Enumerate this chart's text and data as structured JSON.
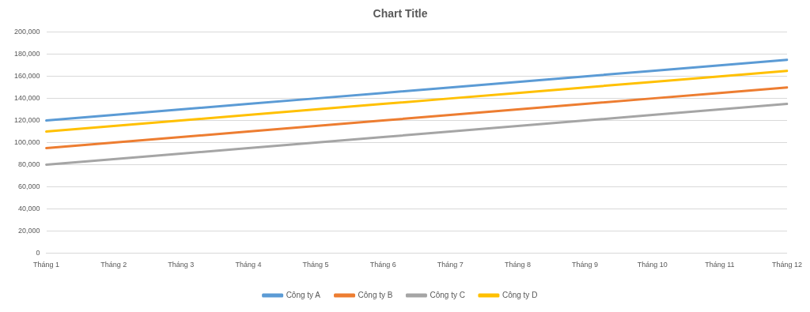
{
  "chart_data": {
    "type": "line",
    "title": "Chart Title",
    "categories": [
      "Tháng 1",
      "Tháng 2",
      "Tháng 3",
      "Tháng 4",
      "Tháng 5",
      "Tháng 6",
      "Tháng 7",
      "Tháng 8",
      "Tháng 9",
      "Tháng 10",
      "Tháng 11",
      "Tháng 12"
    ],
    "series": [
      {
        "name": "Công ty A",
        "color": "#5b9bd5",
        "values": [
          120000,
          125000,
          130000,
          135000,
          140000,
          145000,
          150000,
          155000,
          160000,
          165000,
          170000,
          175000
        ]
      },
      {
        "name": "Công ty B",
        "color": "#ed7d31",
        "values": [
          95000,
          100000,
          105000,
          110000,
          115000,
          120000,
          125000,
          130000,
          135000,
          140000,
          145000,
          150000
        ]
      },
      {
        "name": "Công ty C",
        "color": "#a5a5a5",
        "values": [
          80000,
          85000,
          90000,
          95000,
          100000,
          105000,
          110000,
          115000,
          120000,
          125000,
          130000,
          135000
        ]
      },
      {
        "name": "Công ty D",
        "color": "#ffc000",
        "values": [
          110000,
          115000,
          120000,
          125000,
          130000,
          135000,
          140000,
          145000,
          150000,
          155000,
          160000,
          165000
        ]
      }
    ],
    "ylim": [
      0,
      200000
    ],
    "yticks": [
      {
        "value": 0,
        "label": "0"
      },
      {
        "value": 20000,
        "label": "20,000"
      },
      {
        "value": 40000,
        "label": "40,000"
      },
      {
        "value": 60000,
        "label": "60,000"
      },
      {
        "value": 80000,
        "label": "80,000"
      },
      {
        "value": 100000,
        "label": "100,000"
      },
      {
        "value": 120000,
        "label": "120,000"
      },
      {
        "value": 140000,
        "label": "140,000"
      },
      {
        "value": 160000,
        "label": "160,000"
      },
      {
        "value": 180000,
        "label": "180,000"
      },
      {
        "value": 200000,
        "label": "200,000"
      }
    ],
    "grid": "y",
    "legend": "bottom",
    "marker": "none",
    "line_style": "solid"
  }
}
